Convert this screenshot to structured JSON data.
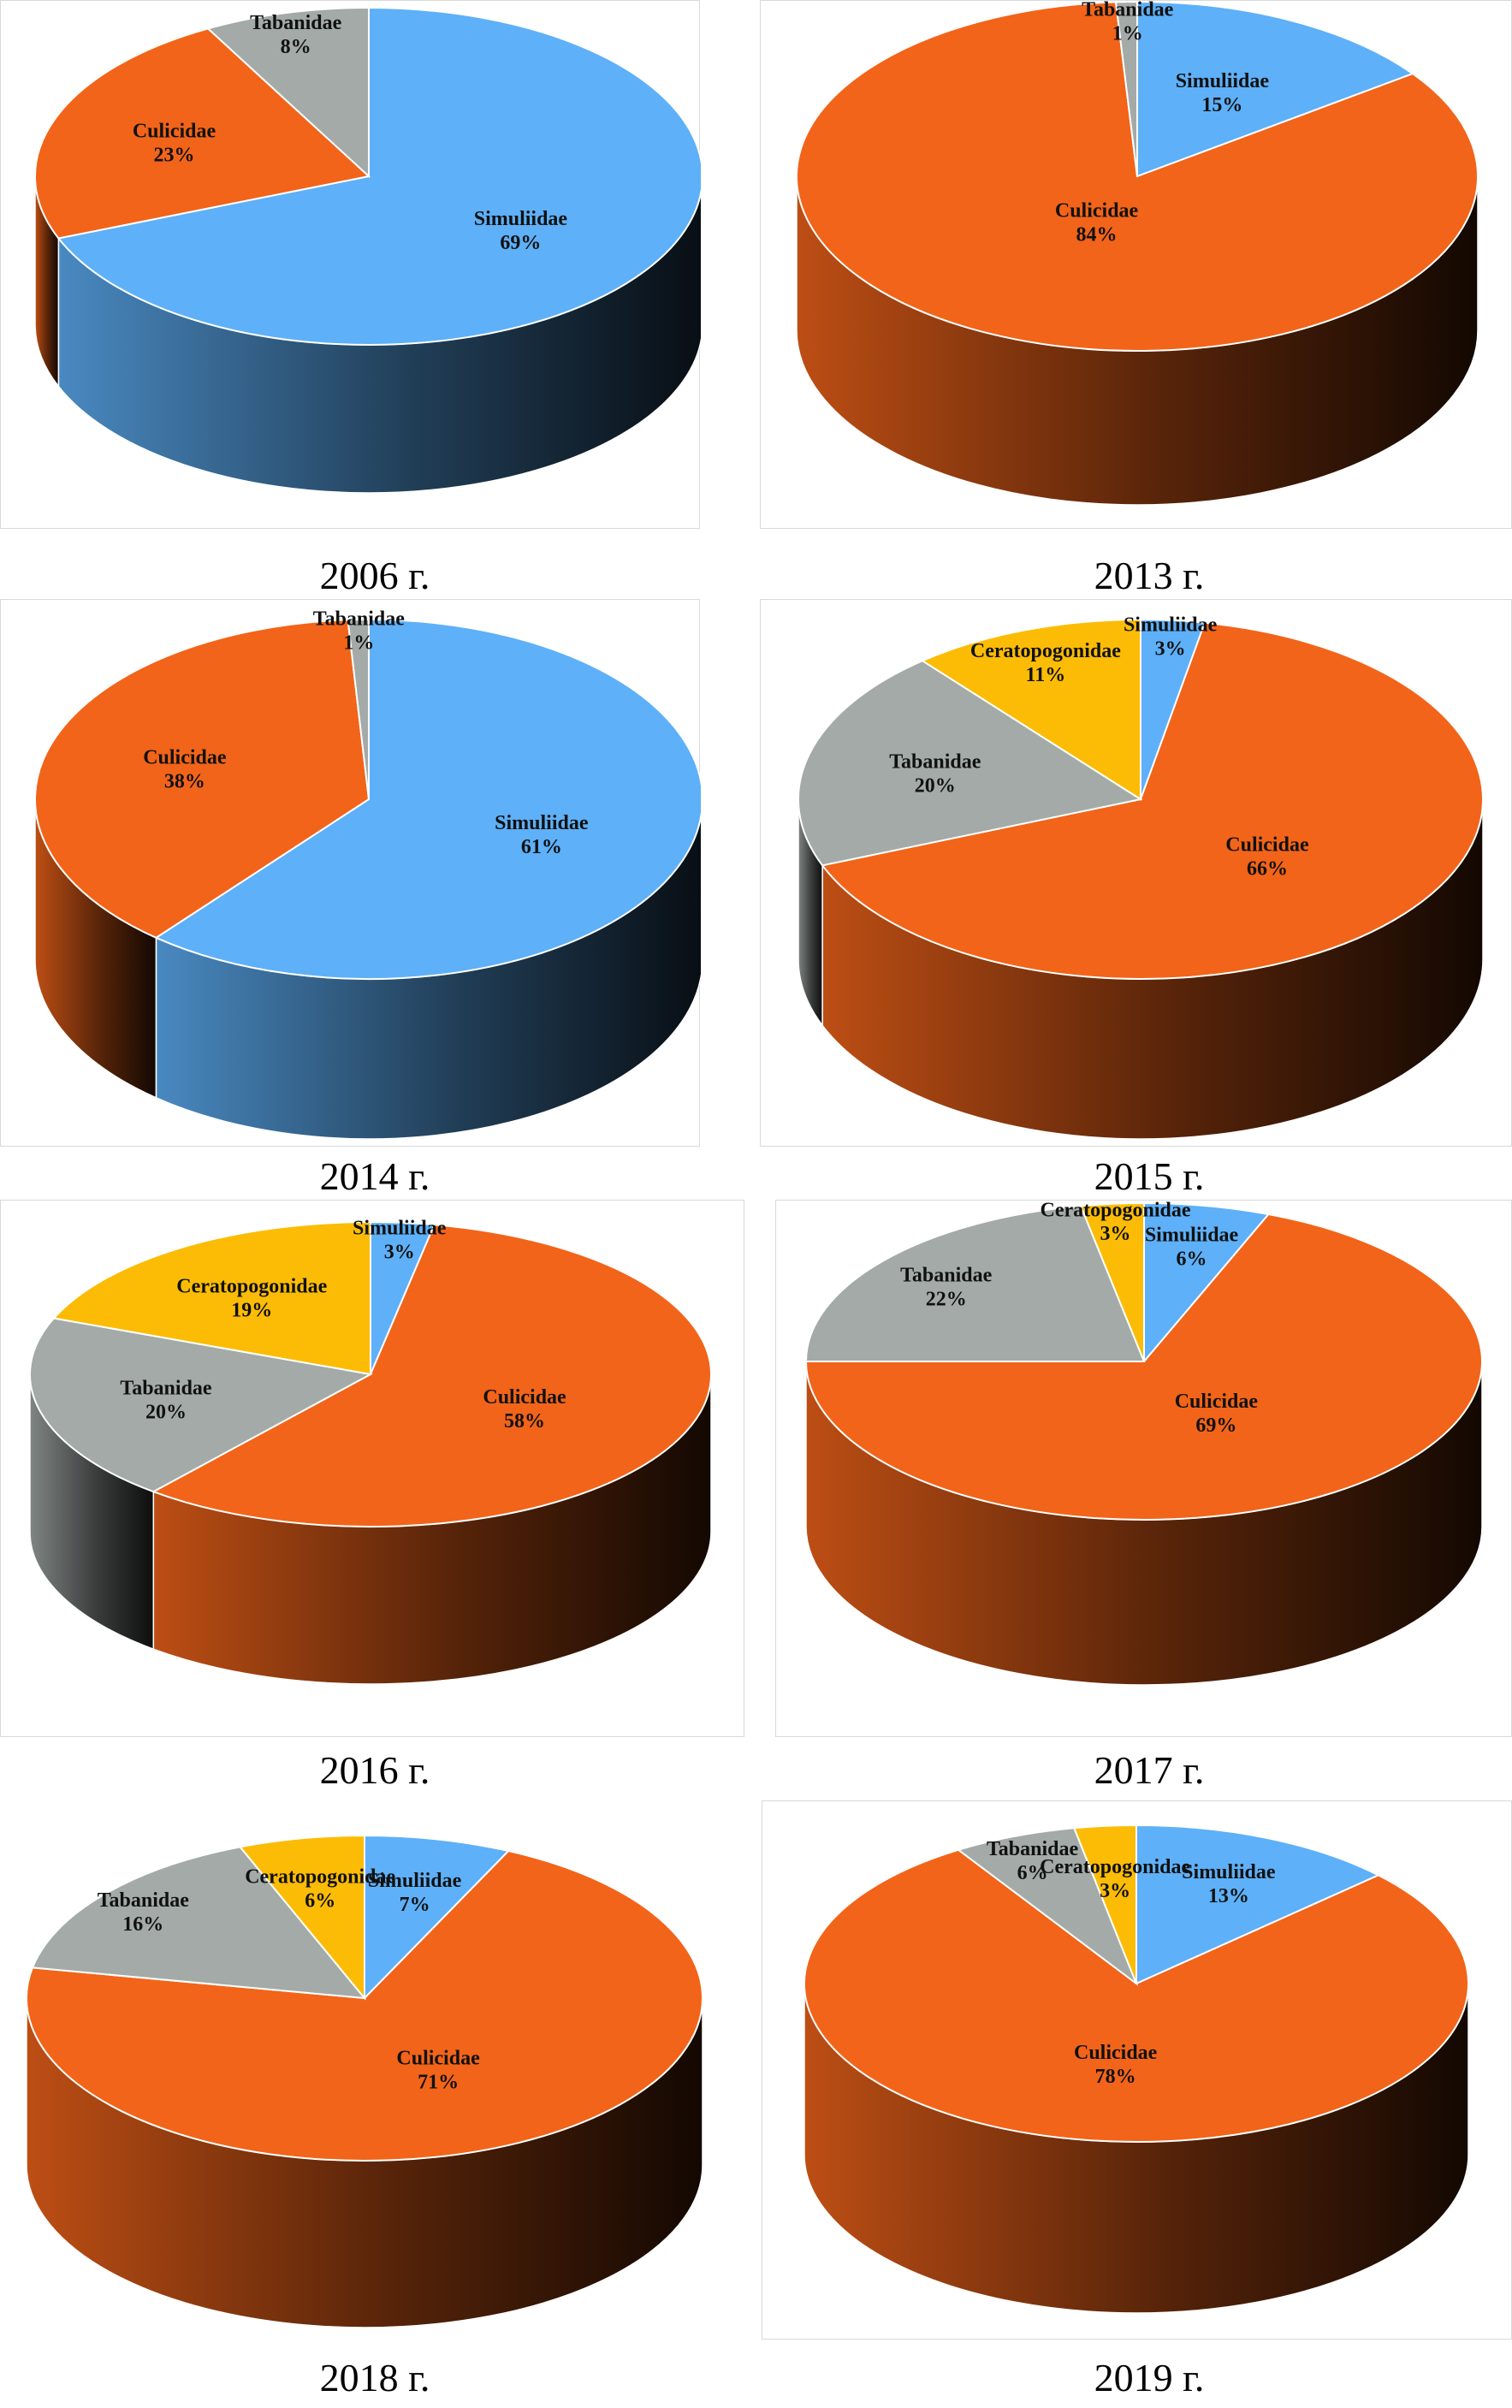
{
  "colors": {
    "Simuliidae": "#5eb0f8",
    "Culicidae": "#f26419",
    "Tabanidae": "#a3aaa8",
    "Ceratopogonidae": "#fcbc05"
  },
  "chart_data": [
    {
      "type": "pie",
      "caption": "2006 г.",
      "slices": [
        {
          "label": "Simuliidae",
          "value": 69,
          "text": "69%"
        },
        {
          "label": "Culicidae",
          "value": 23,
          "text": "23%"
        },
        {
          "label": "Tabanidae",
          "value": 8,
          "text": "8%"
        }
      ]
    },
    {
      "type": "pie",
      "caption": "2013 г.",
      "slices": [
        {
          "label": "Simuliidae",
          "value": 15,
          "text": "15%"
        },
        {
          "label": "Culicidae",
          "value": 84,
          "text": "84%"
        },
        {
          "label": "Tabanidae",
          "value": 1,
          "text": "1%"
        }
      ]
    },
    {
      "type": "pie",
      "caption": "2014 г.",
      "slices": [
        {
          "label": "Simuliidae",
          "value": 61,
          "text": "61%"
        },
        {
          "label": "Culicidae",
          "value": 38,
          "text": "38%"
        },
        {
          "label": "Tabanidae",
          "value": 1,
          "text": "1%"
        }
      ]
    },
    {
      "type": "pie",
      "caption": "2015 г.",
      "slices": [
        {
          "label": "Simuliidae",
          "value": 3,
          "text": "3%"
        },
        {
          "label": "Culicidae",
          "value": 66,
          "text": "66%"
        },
        {
          "label": "Tabanidae",
          "value": 20,
          "text": "20%"
        },
        {
          "label": "Ceratopogonidae",
          "value": 11,
          "text": "11%"
        }
      ]
    },
    {
      "type": "pie",
      "caption": "2016 г.",
      "slices": [
        {
          "label": "Simuliidae",
          "value": 3,
          "text": "3%"
        },
        {
          "label": "Culicidae",
          "value": 58,
          "text": "58%"
        },
        {
          "label": "Tabanidae",
          "value": 20,
          "text": "20%"
        },
        {
          "label": "Ceratopogonidae",
          "value": 19,
          "text": "19%"
        }
      ]
    },
    {
      "type": "pie",
      "caption": "2017 г.",
      "slices": [
        {
          "label": "Simuliidae",
          "value": 6,
          "text": "6%"
        },
        {
          "label": "Culicidae",
          "value": 69,
          "text": "69%"
        },
        {
          "label": "Tabanidae",
          "value": 22,
          "text": "22%"
        },
        {
          "label": "Ceratopogonidae",
          "value": 3,
          "text": "3%"
        }
      ]
    },
    {
      "type": "pie",
      "caption": "2018 г.",
      "slices": [
        {
          "label": "Simuliidae",
          "value": 7,
          "text": "7%"
        },
        {
          "label": "Culicidae",
          "value": 71,
          "text": "71%"
        },
        {
          "label": "Tabanidae",
          "value": 16,
          "text": "16%"
        },
        {
          "label": "Ceratopogonidae",
          "value": 6,
          "text": "6%"
        }
      ]
    },
    {
      "type": "pie",
      "caption": "2019 г.",
      "slices": [
        {
          "label": "Simuliidae",
          "value": 13,
          "text": "13%"
        },
        {
          "label": "Culicidae",
          "value": 78,
          "text": "78%"
        },
        {
          "label": "Tabanidae",
          "value": 6,
          "text": "6%"
        },
        {
          "label": "Ceratopogonidae",
          "value": 3,
          "text": "3%"
        }
      ]
    }
  ]
}
